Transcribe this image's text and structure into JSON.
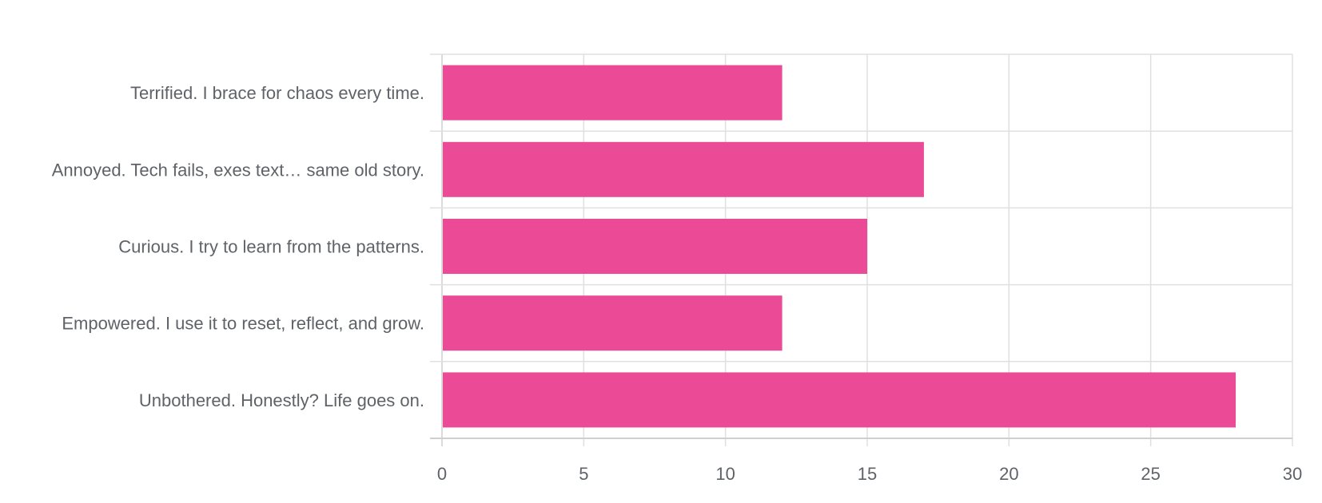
{
  "colors": {
    "bar": "#ea4a96",
    "grid": "#e0e0e0",
    "axis": "#cfcfcf",
    "text": "#5f6368",
    "background": "#ffffff"
  },
  "chart_data": {
    "type": "bar",
    "orientation": "horizontal",
    "title": "",
    "xlabel": "",
    "ylabel": "",
    "categories": [
      "Terrified. I brace for chaos every time.",
      "Annoyed. Tech fails, exes text… same old story.",
      "Curious. I try to learn from the patterns.",
      "Empowered. I use it to reset, reflect, and grow.",
      "Unbothered. Honestly? Life goes on."
    ],
    "values": [
      12,
      17,
      15,
      12,
      28
    ],
    "xlim": [
      0,
      30
    ],
    "xticks": [
      0,
      5,
      10,
      15,
      20,
      25,
      30
    ],
    "grid": true,
    "legend": "none"
  }
}
